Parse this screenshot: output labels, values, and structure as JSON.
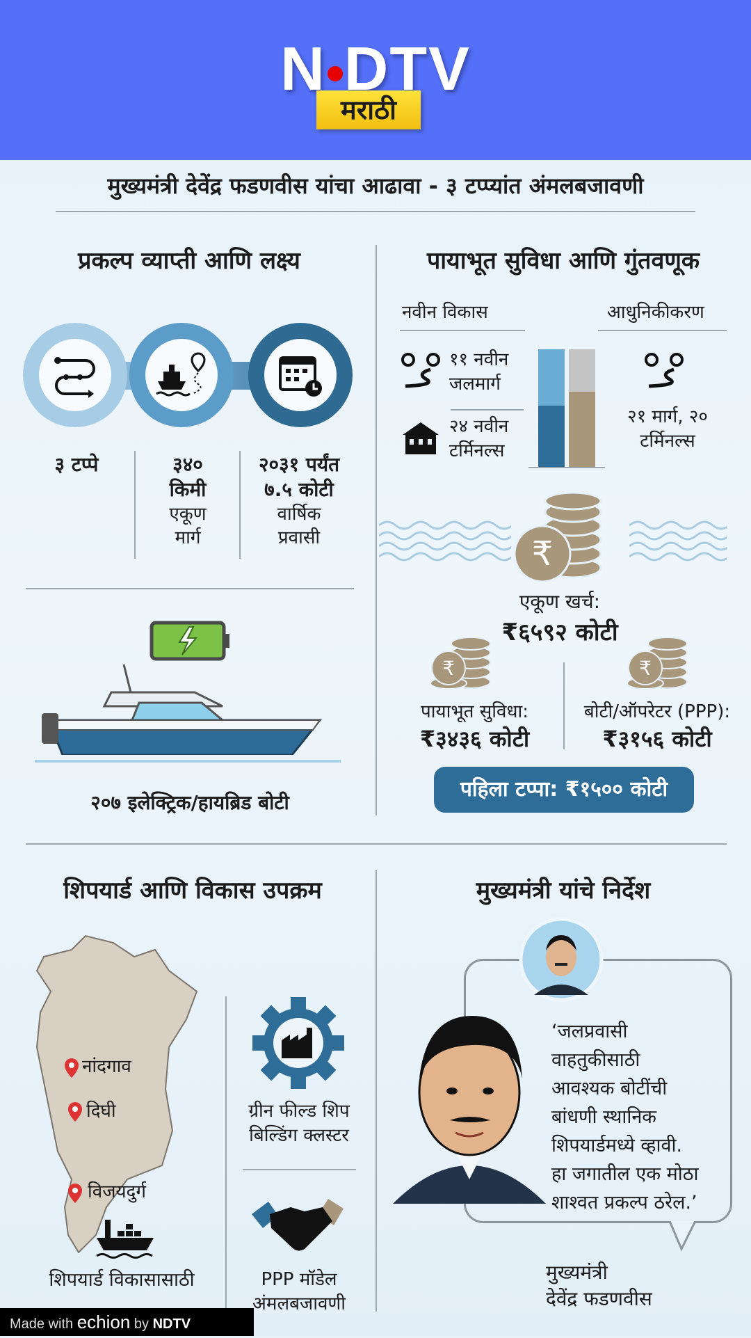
{
  "header": {
    "brand_logo": "NDTV",
    "edition_badge": "मराठी",
    "colors": {
      "header_bg": "#5470f8",
      "badge": "#f5c518",
      "logo_dot": "#e60000"
    }
  },
  "title": "मुख्यमंत्री देवेंद्र फडणवीस यांचा आढावा - ३ टप्प्यांत अंमलबजावणी",
  "scope": {
    "heading": "प्रकल्प व्याप्ती आणि लक्ष्य",
    "icons": [
      "route-icon",
      "ship-route-icon",
      "calendar-clock-icon"
    ],
    "stats": [
      {
        "value": "३ टप्पे",
        "label": ""
      },
      {
        "value": "३४० किमी",
        "label": "एकूण मार्ग"
      },
      {
        "value_prefix": "२०३१ पर्यंत",
        "value": "७.५ कोटी",
        "label": "वार्षिक प्रवासी"
      }
    ],
    "boats_caption": "२०७ इलेक्ट्रिक/हायब्रिड बोटी"
  },
  "infra": {
    "heading": "पायाभूत सुविधा आणि गुंतवणूक",
    "new_dev": {
      "label": "नवीन विकास",
      "waterways": "११ नवीन जलमार्ग",
      "terminals": "२४ नवीन टर्मिनल्स",
      "colors": [
        "#6aaed6",
        "#2f6d99"
      ]
    },
    "modern": {
      "label": "आधुनिकीकरण",
      "text": "२१ मार्ग, २० टर्मिनल्स",
      "colors": [
        "#c4c4c4",
        "#a8977a"
      ]
    },
    "total_label": "एकूण खर्च:",
    "total_value": "₹६५९२ कोटी",
    "infra_label": "पायाभूत सुविधा:",
    "infra_value": "₹३४३६ कोटी",
    "ppp_label": "बोटी/ऑपरेटर (PPP):",
    "ppp_value": "₹३१५६ कोटी",
    "phase1": "पहिला टप्पा: ₹१५०० कोटी"
  },
  "shipyard": {
    "heading": "शिपयार्ड आणि विकास उपक्रम",
    "locations": [
      "नांदगाव",
      "दिघी",
      "विजयदुर्ग"
    ],
    "fund_caption": "शिपयार्ड विकासासाठी",
    "cluster": "ग्रीन फील्ड शिप बिल्डिंग क्लस्टर",
    "ppp": "PPP मॉडेल अंमलबजावणी"
  },
  "directive": {
    "heading": "मुख्यमंत्री यांचे निर्देश",
    "quote": [
      "‘जलप्रवासी",
      "वाहतुकीसाठी",
      "आवश्यक बोटींची",
      "बांधणी स्थानिक",
      "शिपयार्डमध्ये व्हावी.",
      "हा जगातील एक मोठा",
      "शाश्वत प्रकल्प ठरेल.’"
    ],
    "signature": [
      "मुख्यमंत्री",
      "देवेंद्र फडणवीस"
    ]
  },
  "footer": {
    "made_with": "Made with",
    "tool": "echion",
    "by": "by",
    "brand": "NDTV"
  }
}
